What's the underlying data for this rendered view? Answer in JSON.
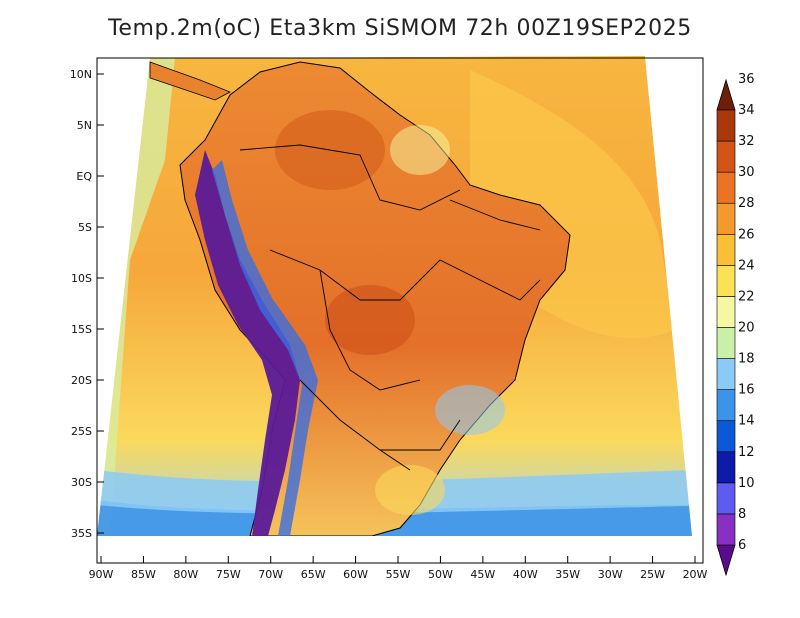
{
  "title": "Temp.2m(oC) Eta3km SiSMOM 72h 00Z19SEP2025",
  "lat_ticks": [
    "10N",
    "5N",
    "EQ",
    "5S",
    "10S",
    "15S",
    "20S",
    "25S",
    "30S",
    "35S"
  ],
  "lon_ticks": [
    "90W",
    "85W",
    "80W",
    "75W",
    "70W",
    "65W",
    "60W",
    "55W",
    "50W",
    "45W",
    "40W",
    "35W",
    "30W",
    "25W",
    "20W"
  ],
  "colorbar": {
    "labels": [
      "6",
      "8",
      "10",
      "12",
      "14",
      "16",
      "18",
      "20",
      "22",
      "24",
      "26",
      "28",
      "30",
      "32",
      "34",
      "36"
    ],
    "colors": [
      "#5a0a8c",
      "#8a2fc4",
      "#5e5cf0",
      "#0e1aa8",
      "#0b59d6",
      "#3b94ea",
      "#8ccaf6",
      "#c9f0a6",
      "#f6f7a2",
      "#fbe255",
      "#f9bf36",
      "#f39a2c",
      "#ea7424",
      "#d25416",
      "#a9380d",
      "#6e1f08"
    ]
  },
  "colors": {
    "ocean_warm": "#f7b23a",
    "ocean_mid": "#fbd24c",
    "land": "#e9822e",
    "andes_cold": "#5e1a9a",
    "coast_line": "#000000"
  }
}
